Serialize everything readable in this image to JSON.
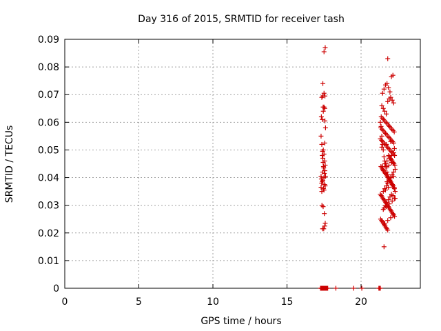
{
  "chart_data": {
    "type": "scatter",
    "title": "Day 316 of 2015, SRMTID for receiver tash",
    "xlabel": "GPS time / hours",
    "ylabel": "SRMTID / TECUs",
    "xlim": [
      0,
      24
    ],
    "ylim": [
      0,
      0.09
    ],
    "xticks": [
      0,
      5,
      10,
      15,
      20
    ],
    "xtick_labels": [
      "0",
      "5",
      "10",
      "15",
      "20"
    ],
    "yticks": [
      0,
      0.01,
      0.02,
      0.03,
      0.04,
      0.05,
      0.06,
      0.07,
      0.08,
      0.09
    ],
    "ytick_labels": [
      "0",
      "0.01",
      "0.02",
      "0.03",
      "0.04",
      "0.05",
      "0.06",
      "0.07",
      "0.08",
      "0.09"
    ],
    "grid": true,
    "marker": "+",
    "color": "#cc0000",
    "series": [
      {
        "name": "SRMTID",
        "x": [
          17.26,
          17.3,
          17.33,
          17.36,
          17.39,
          17.42,
          17.45,
          17.48,
          17.52,
          17.55,
          17.58,
          17.62,
          17.66,
          17.7,
          17.75,
          18.3,
          19.5,
          20.05,
          21.2,
          21.25,
          21.3,
          17.3,
          17.32,
          17.35,
          17.38,
          17.4,
          17.42,
          17.44,
          17.46,
          17.48,
          17.5,
          17.52,
          17.54,
          17.56,
          17.58,
          17.6,
          17.3,
          17.34,
          17.38,
          17.42,
          17.46,
          17.5,
          17.54,
          17.58,
          17.3,
          17.35,
          17.4,
          17.45,
          17.5,
          17.55,
          17.6,
          17.32,
          17.38,
          17.44,
          17.5,
          17.56,
          17.35,
          17.42,
          17.5,
          17.56,
          17.36,
          17.44,
          17.52,
          17.58,
          17.4,
          17.48,
          17.55,
          17.42,
          17.5,
          17.58,
          17.45,
          17.55,
          21.3,
          21.35,
          21.4,
          21.45,
          21.5,
          21.55,
          21.6,
          21.65,
          21.7,
          21.75,
          21.8,
          21.85,
          21.9,
          21.95,
          22.0,
          22.05,
          22.1,
          22.15,
          22.2,
          22.25,
          22.3,
          21.3,
          21.36,
          21.42,
          21.48,
          21.54,
          21.6,
          21.66,
          21.72,
          21.78,
          21.84,
          21.9,
          21.96,
          22.02,
          22.08,
          22.14,
          22.2,
          22.26,
          21.32,
          21.38,
          21.44,
          21.5,
          21.56,
          21.62,
          21.68,
          21.74,
          21.8,
          21.86,
          21.92,
          21.98,
          22.04,
          22.1,
          22.16,
          22.22,
          22.28,
          21.34,
          21.4,
          21.46,
          21.52,
          21.58,
          21.64,
          21.7,
          21.76,
          21.82,
          21.88,
          21.94,
          22.0,
          22.06,
          22.12,
          22.18,
          22.24,
          21.3,
          21.38,
          21.46,
          21.54,
          21.62,
          21.7,
          21.78,
          21.86,
          21.94,
          22.02,
          22.1,
          22.18,
          22.26,
          21.33,
          21.41,
          21.49,
          21.57,
          21.65,
          21.73,
          21.81,
          21.89,
          21.97,
          22.05,
          22.13,
          22.21,
          21.36,
          21.44,
          21.52,
          21.6,
          21.68,
          21.76,
          21.84,
          21.92,
          22.0,
          22.08,
          22.16,
          22.24,
          21.4,
          21.5,
          21.6,
          21.7,
          21.8,
          21.9,
          22.0,
          22.1,
          22.2,
          21.45,
          21.55,
          21.65,
          21.75,
          21.85,
          21.95,
          22.05,
          22.15,
          21.5,
          21.6,
          21.7,
          21.8,
          21.9,
          22.0,
          22.1,
          22.2,
          22.3,
          21.55,
          21.65,
          21.75,
          21.85,
          21.95,
          22.05,
          22.15,
          22.25,
          21.45,
          21.6,
          21.75,
          21.9,
          22.05,
          22.2,
          21.5,
          21.7,
          21.9,
          22.1,
          22.3,
          21.6,
          21.8,
          22.0,
          22.2,
          21.4,
          21.7,
          22.0,
          22.25,
          21.65,
          21.85,
          22.1,
          21.55,
          21.8,
          22.05,
          21.75,
          21.95,
          22.2,
          21.5,
          21.68,
          21.88
        ],
        "y": [
          0,
          0,
          0,
          0,
          0,
          0,
          0,
          0,
          0,
          0,
          0,
          0,
          0,
          0,
          0,
          0,
          0,
          0,
          0,
          0,
          0,
          0.0405,
          0.0395,
          0.035,
          0.048,
          0.042,
          0.047,
          0.0455,
          0.044,
          0.0435,
          0.04,
          0.0415,
          0.046,
          0.0425,
          0.0445,
          0.0405,
          0.0365,
          0.038,
          0.0385,
          0.039,
          0.036,
          0.0355,
          0.0375,
          0.037,
          0.055,
          0.052,
          0.0495,
          0.05,
          0.0485,
          0.0525,
          0.058,
          0.062,
          0.061,
          0.0655,
          0.0655,
          0.0605,
          0.069,
          0.0695,
          0.0705,
          0.0695,
          0.03,
          0.0295,
          0.027,
          0.0235,
          0.0215,
          0.0215,
          0.0225,
          0.074,
          0.0855,
          0.087,
          0.064,
          0.065,
          0.06,
          0.0585,
          0.055,
          0.052,
          0.05,
          0.0475,
          0.046,
          0.045,
          0.044,
          0.042,
          0.041,
          0.04,
          0.0395,
          0.039,
          0.0385,
          0.038,
          0.0375,
          0.037,
          0.0365,
          0.036,
          0.035,
          0.034,
          0.0335,
          0.033,
          0.0325,
          0.032,
          0.0315,
          0.031,
          0.0305,
          0.03,
          0.0295,
          0.029,
          0.0285,
          0.028,
          0.0275,
          0.027,
          0.0265,
          0.026,
          0.025,
          0.0245,
          0.024,
          0.0235,
          0.023,
          0.0225,
          0.022,
          0.0215,
          0.021,
          0.048,
          0.0475,
          0.047,
          0.0465,
          0.046,
          0.0455,
          0.045,
          0.0445,
          0.044,
          0.0435,
          0.043,
          0.0425,
          0.042,
          0.0415,
          0.041,
          0.0405,
          0.04,
          0.0395,
          0.039,
          0.0385,
          0.038,
          0.0375,
          0.037,
          0.0365,
          0.054,
          0.0535,
          0.053,
          0.0525,
          0.052,
          0.0515,
          0.051,
          0.0505,
          0.05,
          0.0495,
          0.049,
          0.0485,
          0.048,
          0.058,
          0.0575,
          0.057,
          0.0565,
          0.056,
          0.0555,
          0.055,
          0.0545,
          0.054,
          0.0535,
          0.053,
          0.0525,
          0.062,
          0.0615,
          0.061,
          0.0605,
          0.06,
          0.0595,
          0.059,
          0.0585,
          0.058,
          0.0575,
          0.057,
          0.0565,
          0.066,
          0.065,
          0.064,
          0.063,
          0.0675,
          0.0685,
          0.069,
          0.068,
          0.067,
          0.0705,
          0.072,
          0.0735,
          0.074,
          0.0725,
          0.071,
          0.0765,
          0.077,
          0.035,
          0.036,
          0.037,
          0.038,
          0.039,
          0.04,
          0.041,
          0.042,
          0.043,
          0.029,
          0.03,
          0.031,
          0.032,
          0.033,
          0.034,
          0.0335,
          0.0325,
          0.044,
          0.045,
          0.046,
          0.047,
          0.048,
          0.049,
          0.0285,
          0.0295,
          0.0305,
          0.0315,
          0.0325,
          0.0235,
          0.0245,
          0.0255,
          0.0265,
          0.051,
          0.052,
          0.053,
          0.0505,
          0.0355,
          0.0365,
          0.0375,
          0.015,
          0.083,
          0.0455,
          0.0385,
          0.0395,
          0.0405,
          0.0425,
          0.0435,
          0.0445
        ]
      }
    ]
  }
}
